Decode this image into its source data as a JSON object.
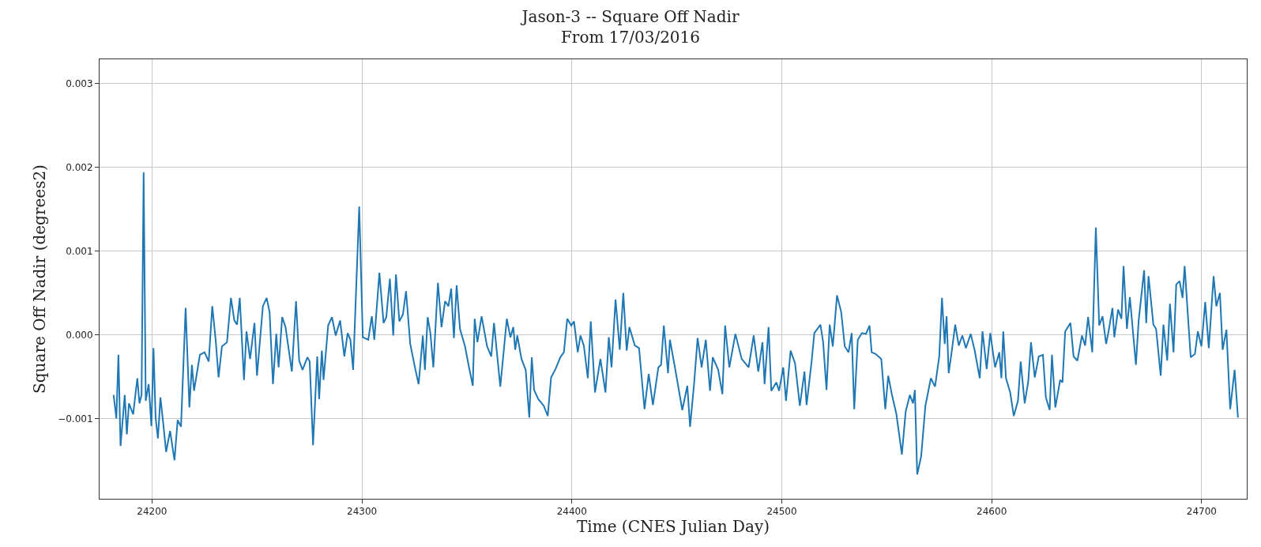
{
  "chart_data": {
    "type": "line",
    "title": "Jason-3 -- Square Off Nadir",
    "subtitle": "From 17/03/2016",
    "xlabel": "Time (CNES Julian Day)",
    "ylabel": "Square Off Nadir (degrees2)",
    "xlim": [
      24175,
      24721.5
    ],
    "xticks": [
      24200,
      24300,
      24400,
      24500,
      24600,
      24700
    ],
    "ylim": [
      -0.00196,
      0.00329
    ],
    "yticks": [
      {
        "value": -0.001,
        "label": "−0.001"
      },
      {
        "value": 0,
        "label": "0.000"
      },
      {
        "value": 0.001,
        "label": "0.001"
      },
      {
        "value": 0.002,
        "label": "0.002"
      },
      {
        "value": 0.003,
        "label": "0.003"
      }
    ],
    "grid": true,
    "series": [
      {
        "color": "#1f77b4",
        "x": [
          24181.7,
          24183,
          24184,
          24185,
          24187,
          24188,
          24189,
          24191,
          24193,
          24194,
          24195,
          24196,
          24197,
          24198.4,
          24199.7,
          24200.7,
          24201.7,
          24202.8,
          24204,
          24205.3,
          24206.7,
          24208.6,
          24210.7,
          24212.2,
          24213.8,
          24216,
          24217.8,
          24219,
          24220,
          24222.8,
          24225,
          24227,
          24228.7,
          24230.3,
          24231.7,
          24233.3,
          24235.7,
          24237.6,
          24239.2,
          24240.5,
          24241.8,
          24243.8,
          24245,
          24246.7,
          24248.8,
          24250,
          24252.8,
          24254.6,
          24256,
          24257.6,
          24259.2,
          24260.3,
          24262,
          24263.6,
          24266.6,
          24268.6,
          24270.1,
          24271.7,
          24274,
          24275.1,
          24276.7,
          24278.7,
          24279.6,
          24280.9,
          24281.7,
          24283.9,
          24285.7,
          24287.5,
          24289.6,
          24291.6,
          24293.2,
          24294.5,
          24295.8,
          24298.7,
          24300.4,
          24303,
          24304.7,
          24305.9,
          24308.3,
          24310.3,
          24311.6,
          24313.3,
          24314.9,
          24316.2,
          24317.8,
          24319.5,
          24321,
          24323,
          24325.4,
          24327,
          24329,
          24330,
          24331.3,
          24332.6,
          24334,
          24336.2,
          24337.9,
          24339.6,
          24341.2,
          24342.5,
          24343.8,
          24345.1,
          24346.7,
          24349.1,
          24351,
          24352.8,
          24353.7,
          24355,
          24357,
          24359.6,
          24361.6,
          24362.9,
          24365.9,
          24366.8,
          24369,
          24370.7,
          24372.1,
          24373,
          24374,
          24376,
          24378,
          24379.7,
          24380.9,
          24382,
          24384,
          24386.6,
          24388.5,
          24390.1,
          24392.2,
          24394.5,
          24396.2,
          24397.8,
          24399.7,
          24401,
          24402.8,
          24404.1,
          24405.7,
          24407.6,
          24409,
          24411,
          24413.6,
          24416,
          24417.6,
          24418.9,
          24420.8,
          24422.8,
          24424.5,
          24426.1,
          24427.4,
          24430,
          24432,
          24434.6,
          24436.6,
          24438.6,
          24441.2,
          24442.5,
          24443.8,
          24445.8,
          24446.7,
          24449.3,
          24452.6,
          24455,
          24456.3,
          24458.2,
          24459.9,
          24461.8,
          24463.8,
          24465.8,
          24467.1,
          24469.7,
          24471.7,
          24473,
          24475,
          24477.9,
          24480.9,
          24484.2,
          24486.6,
          24488.8,
          24490.8,
          24491.8,
          24493.7,
          24495,
          24497.4,
          24498.7,
          24500.7,
          24502,
          24504.2,
          24506.3,
          24508.6,
          24510.8,
          24511.8,
          24514.2,
          24515.5,
          24518.4,
          24519.7,
          24521.3,
          24522.8,
          24524.3,
          24526.3,
          24528.3,
          24530,
          24531.8,
          24533.3,
          24534.5,
          24536.2,
          24538.2,
          24540.1,
          24541.8,
          24542.8,
          24544.7,
          24547.4,
          24549.3,
          24550.7,
          24552.4,
          24554.6,
          24557.2,
          24559,
          24561,
          24562.5,
          24563.4,
          24564.5,
          24566.4,
          24568.4,
          24571,
          24573,
          24575,
          24576.3,
          24577.6,
          24578.5,
          24579.5,
          24581,
          24582.6,
          24584.3,
          24586,
          24587.7,
          24590,
          24591.9,
          24594.3,
          24595.6,
          24597.6,
          24599.3,
          24601.6,
          24603.6,
          24604.6,
          24605.5,
          24606.8,
          24608.8,
          24610.5,
          24612.5,
          24613.8,
          24615.7,
          24617.4,
          24618.7,
          24620.5,
          24622.4,
          24624.4,
          24625.8,
          24627.6,
          24628.7,
          24630.3,
          24632.6,
          24633.7,
          24635,
          24637.5,
          24639,
          24640.8,
          24643,
          24644.5,
          24645.9,
          24647.9,
          24649.6,
          24651.2,
          24652.8,
          24654.5,
          24655.8,
          24657.5,
          24658.4,
          24660.2,
          24661.8,
          24662.8,
          24664.4,
          24665.8,
          24668.7,
          24670,
          24672.6,
          24673.6,
          24674.7,
          24677,
          24678.3,
          24680.5,
          24681.8,
          24683.6,
          24684.9,
          24686.6,
          24687.9,
          24689.5,
          24690.9,
          24691.9,
          24693.5,
          24694.8,
          24696.8,
          24698.2,
          24699.9,
          24701.7,
          24703.4,
          24705.7,
          24707,
          24708.7,
          24710,
          24711.8,
          24713.6,
          24715.7,
          24717.3
        ],
        "values": [
          -0.00072,
          -0.001,
          -0.00024,
          -0.00133,
          -0.00072,
          -0.00119,
          -0.00082,
          -0.00095,
          -0.00052,
          -0.00082,
          -0.00072,
          0.00194,
          -0.00079,
          -0.00059,
          -0.00109,
          -0.00016,
          -0.00099,
          -0.00124,
          -0.00075,
          -0.00105,
          -0.0014,
          -0.00115,
          -0.0015,
          -0.00102,
          -0.0011,
          0.00032,
          -0.00087,
          -0.00036,
          -0.00067,
          -0.00024,
          -0.00021,
          -0.00032,
          0.00034,
          -6e-05,
          -0.00051,
          -0.00014,
          -9e-05,
          0.00044,
          0.00017,
          0.00012,
          0.00044,
          -0.00054,
          4e-05,
          -0.00029,
          0.00014,
          -0.00049,
          0.00034,
          0.00044,
          0.00027,
          -0.00059,
          1e-05,
          -0.00039,
          0.00021,
          9e-05,
          -0.00044,
          0.0004,
          -0.00031,
          -0.00042,
          -0.00027,
          -0.00032,
          -0.00132,
          -0.00026,
          -0.00077,
          -0.00019,
          -0.00054,
          0.00011,
          0.00021,
          -1e-05,
          0.00017,
          -0.00026,
          2e-05,
          -6e-05,
          -0.00042,
          0.00153,
          -3e-05,
          -6e-05,
          0.00022,
          -6e-05,
          0.00074,
          0.00014,
          0.00021,
          0.00067,
          -1e-05,
          0.00072,
          0.00016,
          0.00024,
          0.00052,
          -0.00011,
          -0.00041,
          -0.00059,
          -1e-05,
          -0.00042,
          0.00021,
          2e-05,
          -0.00039,
          0.00062,
          9e-05,
          0.0004,
          0.00034,
          0.00055,
          -4e-05,
          0.00059,
          7e-05,
          -0.00014,
          -0.00039,
          -0.00061,
          0.00019,
          -9e-05,
          0.00022,
          -0.00014,
          -0.00026,
          0.00014,
          -0.00062,
          -0.00039,
          0.00019,
          -3e-05,
          9e-05,
          -0.00018,
          -1e-05,
          -0.00029,
          -0.00042,
          -0.00099,
          -0.00027,
          -0.00066,
          -0.00077,
          -0.00085,
          -0.00097,
          -0.00051,
          -0.00041,
          -0.00027,
          -0.00021,
          0.00019,
          0.00011,
          0.00016,
          -0.00021,
          -1e-05,
          -0.00013,
          -0.00052,
          0.00016,
          -0.00069,
          -0.00029,
          -0.00069,
          -3e-05,
          -0.00039,
          0.00042,
          -0.00018,
          0.0005,
          -0.00019,
          9e-05,
          -0.00013,
          -0.00016,
          -0.00089,
          -0.00047,
          -0.00084,
          -0.00039,
          -0.00036,
          0.00011,
          -0.00046,
          -6e-05,
          -0.00042,
          -0.0009,
          -0.00061,
          -0.0011,
          -0.00059,
          -4e-05,
          -0.00039,
          -6e-05,
          -0.00067,
          -0.00027,
          -0.00042,
          -0.00071,
          0.00011,
          -0.00039,
          1e-05,
          -0.00029,
          -0.00039,
          -1e-05,
          -0.00044,
          -9e-05,
          -0.00059,
          9e-05,
          -0.00067,
          -0.00057,
          -0.00067,
          -0.00039,
          -0.00079,
          -0.00019,
          -0.00034,
          -0.00085,
          -0.00044,
          -0.00084,
          -0.00032,
          2e-05,
          0.00012,
          -9e-05,
          -0.00066,
          0.00012,
          -0.00014,
          0.00047,
          0.00027,
          -0.00014,
          -0.00021,
          2e-05,
          -0.00089,
          -6e-05,
          2e-05,
          1e-05,
          0.00011,
          -0.00021,
          -0.00023,
          -0.00029,
          -0.00089,
          -0.00049,
          -0.00071,
          -0.00095,
          -0.00143,
          -0.00092,
          -0.00072,
          -0.00082,
          -0.00066,
          -0.00167,
          -0.00145,
          -0.00085,
          -0.00052,
          -0.00062,
          -0.00026,
          0.00044,
          -0.00011,
          0.00022,
          -0.00046,
          -0.00019,
          0.00012,
          -0.00013,
          -1e-05,
          -0.00016,
          1e-05,
          -0.00019,
          -0.00052,
          4e-05,
          -0.00041,
          2e-05,
          -0.00039,
          -0.00021,
          -0.00052,
          4e-05,
          -0.00052,
          -0.00069,
          -0.00097,
          -0.00079,
          -0.00032,
          -0.00082,
          -0.00056,
          -9e-05,
          -0.00051,
          -0.00026,
          -0.00024,
          -0.00075,
          -0.0009,
          -0.00024,
          -0.00087,
          -0.00054,
          -0.00057,
          4e-05,
          0.00014,
          -0.00026,
          -0.00031,
          -1e-05,
          -0.00013,
          0.00021,
          -0.00021,
          0.00128,
          0.00011,
          0.00022,
          -0.00011,
          6e-05,
          0.00032,
          -3e-05,
          0.0003,
          0.00019,
          0.00082,
          7e-05,
          0.00045,
          -0.00036,
          0.00017,
          0.00077,
          0.00014,
          0.0007,
          0.00012,
          7e-05,
          -0.00049,
          0.00012,
          -0.00031,
          0.00037,
          -0.00021,
          0.0006,
          0.00064,
          0.00044,
          0.00082,
          0.00021,
          -0.00027,
          -0.00023,
          4e-05,
          -0.00014,
          0.00039,
          -0.00016,
          0.0007,
          0.00034,
          0.0005,
          -0.00018,
          6e-05,
          -0.00089,
          -0.00042,
          -0.00099
        ]
      }
    ]
  }
}
